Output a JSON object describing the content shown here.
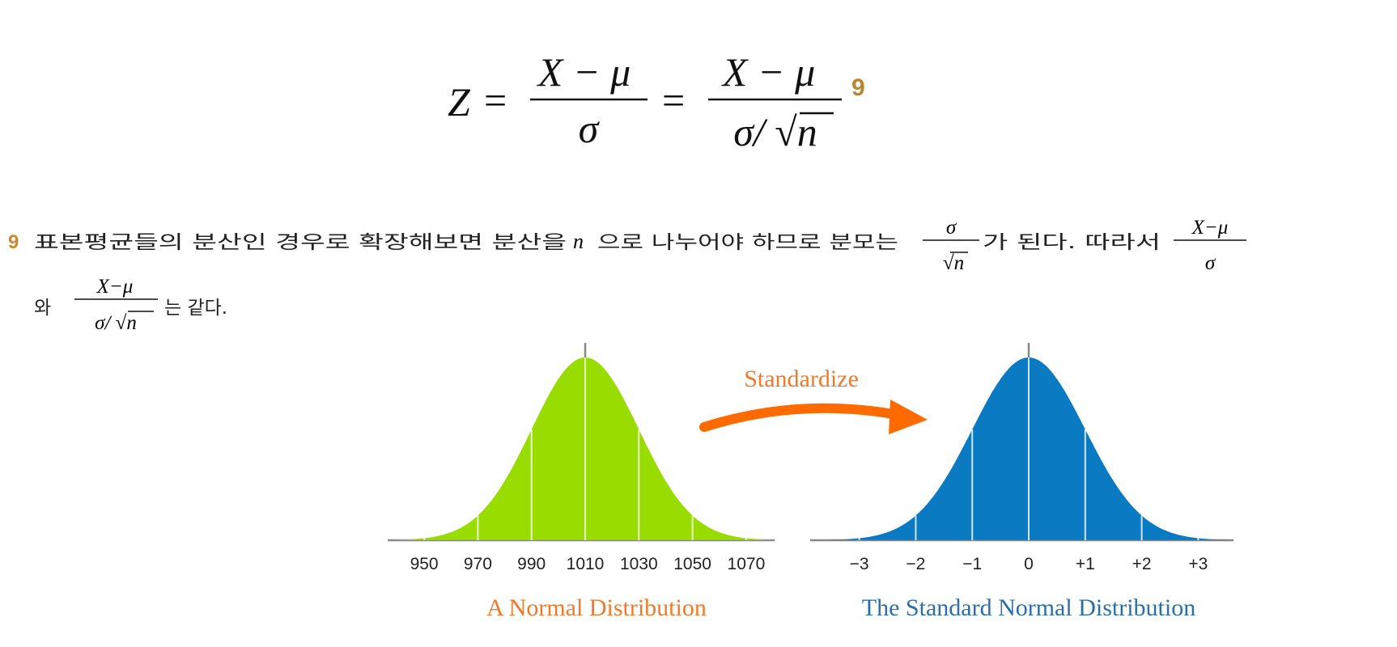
{
  "formula": {
    "lhs": "Z",
    "eq1": "=",
    "num1": "X − μ",
    "den1": "σ",
    "eq2": "=",
    "num2": "X − μ",
    "den2": "σ/ √n",
    "ref": "9"
  },
  "footnote": {
    "marker": "9",
    "line1_a": "표본평균들의 분산인 경우로 확장해보면 분산을",
    "var": "n",
    "line1_b": "으로 나누어야 하므로 분모는",
    "frac1": {
      "num": "σ",
      "den": "√n"
    },
    "line1_c": "가 된다. 따라서",
    "frac2": {
      "num": "X−μ",
      "den": "σ"
    },
    "line2_a": "와",
    "frac3": {
      "num": "X−μ",
      "den": "σ/ √n"
    },
    "line2_b": "는 같다."
  },
  "figure": {
    "arrow_label": "Standardize",
    "left": {
      "ticks": [
        "950",
        "970",
        "990",
        "1010",
        "1030",
        "1050",
        "1070"
      ],
      "caption": "A Normal Distribution"
    },
    "right": {
      "ticks": [
        "−3",
        "−2",
        "−1",
        "0",
        "+1",
        "+2",
        "+3"
      ],
      "caption": "The Standard Normal Distribution"
    }
  }
}
